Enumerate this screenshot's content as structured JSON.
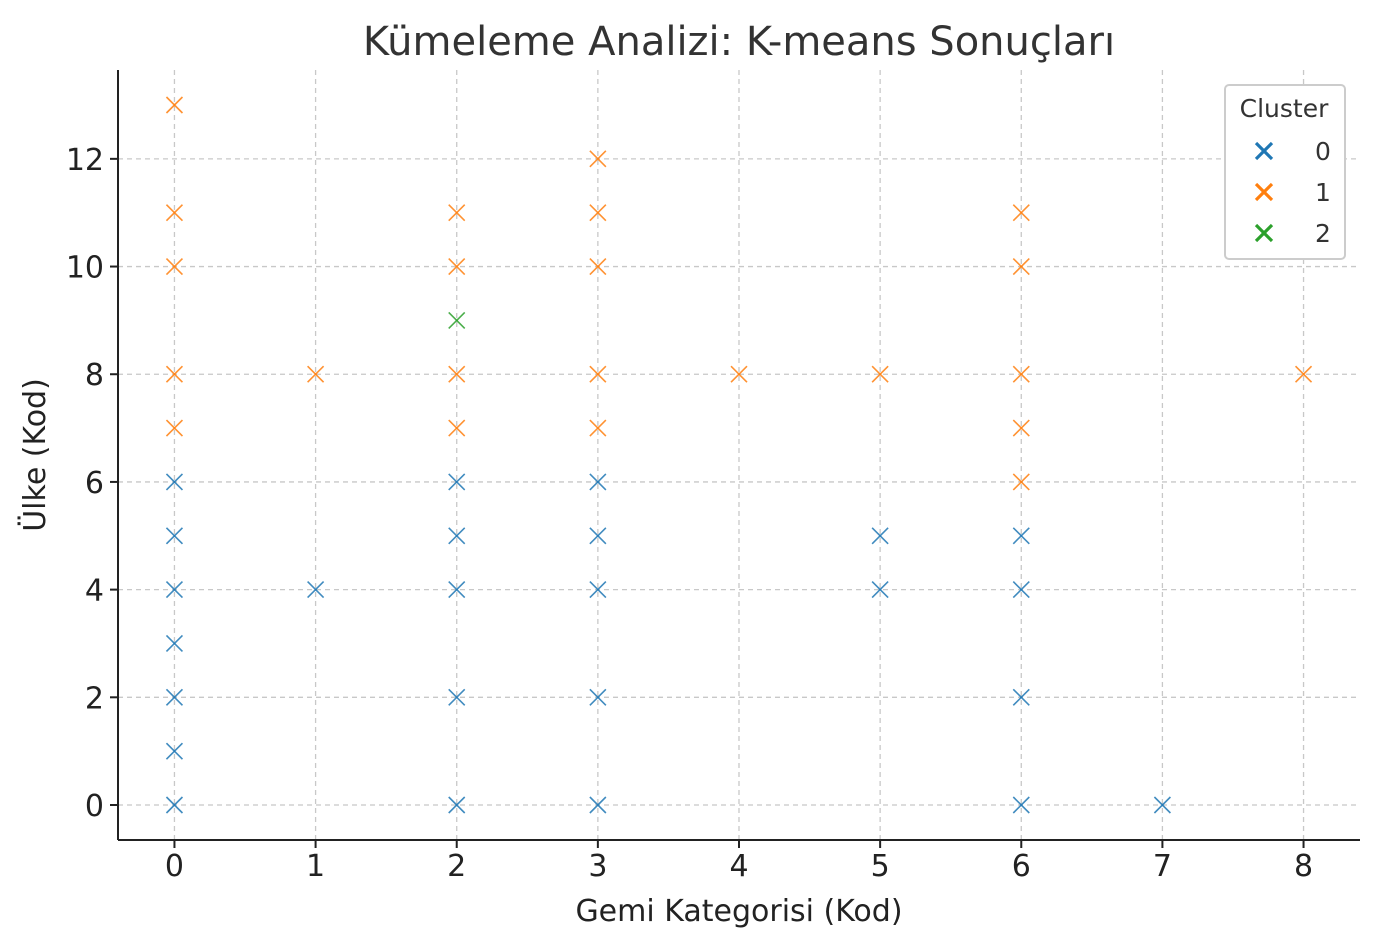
{
  "chart_data": {
    "type": "scatter",
    "title": "Kümeleme Analizi: K-means Sonuçları",
    "xlabel": "Gemi Kategorisi (Kod)",
    "ylabel": "Ülke (Kod)",
    "xlim": [
      -0.4,
      8.4
    ],
    "ylim": [
      -0.65,
      13.65
    ],
    "xticks": [
      0,
      1,
      2,
      3,
      4,
      5,
      6,
      7,
      8
    ],
    "yticks": [
      0,
      2,
      4,
      6,
      8,
      10,
      12
    ],
    "grid": true,
    "legend": {
      "title": "Cluster",
      "placement": "top-right",
      "entries": [
        "0",
        "1",
        "2"
      ]
    },
    "series": [
      {
        "name": "0",
        "color": "#1f77b4",
        "points": [
          [
            0,
            0
          ],
          [
            0,
            1
          ],
          [
            0,
            2
          ],
          [
            0,
            3
          ],
          [
            0,
            4
          ],
          [
            0,
            5
          ],
          [
            0,
            6
          ],
          [
            1,
            4
          ],
          [
            2,
            0
          ],
          [
            2,
            2
          ],
          [
            2,
            4
          ],
          [
            2,
            5
          ],
          [
            2,
            6
          ],
          [
            3,
            0
          ],
          [
            3,
            2
          ],
          [
            3,
            4
          ],
          [
            3,
            5
          ],
          [
            3,
            6
          ],
          [
            5,
            4
          ],
          [
            5,
            5
          ],
          [
            6,
            0
          ],
          [
            6,
            2
          ],
          [
            6,
            4
          ],
          [
            6,
            5
          ],
          [
            7,
            0
          ]
        ]
      },
      {
        "name": "1",
        "color": "#ff7f0e",
        "points": [
          [
            0,
            7
          ],
          [
            0,
            8
          ],
          [
            0,
            10
          ],
          [
            0,
            11
          ],
          [
            0,
            13
          ],
          [
            1,
            8
          ],
          [
            2,
            7
          ],
          [
            2,
            8
          ],
          [
            2,
            10
          ],
          [
            2,
            11
          ],
          [
            3,
            7
          ],
          [
            3,
            8
          ],
          [
            3,
            10
          ],
          [
            3,
            11
          ],
          [
            3,
            12
          ],
          [
            4,
            8
          ],
          [
            5,
            8
          ],
          [
            6,
            6
          ],
          [
            6,
            7
          ],
          [
            6,
            8
          ],
          [
            6,
            10
          ],
          [
            6,
            11
          ],
          [
            8,
            8
          ]
        ]
      },
      {
        "name": "2",
        "color": "#2ca02c",
        "points": [
          [
            2,
            9
          ]
        ]
      }
    ]
  }
}
